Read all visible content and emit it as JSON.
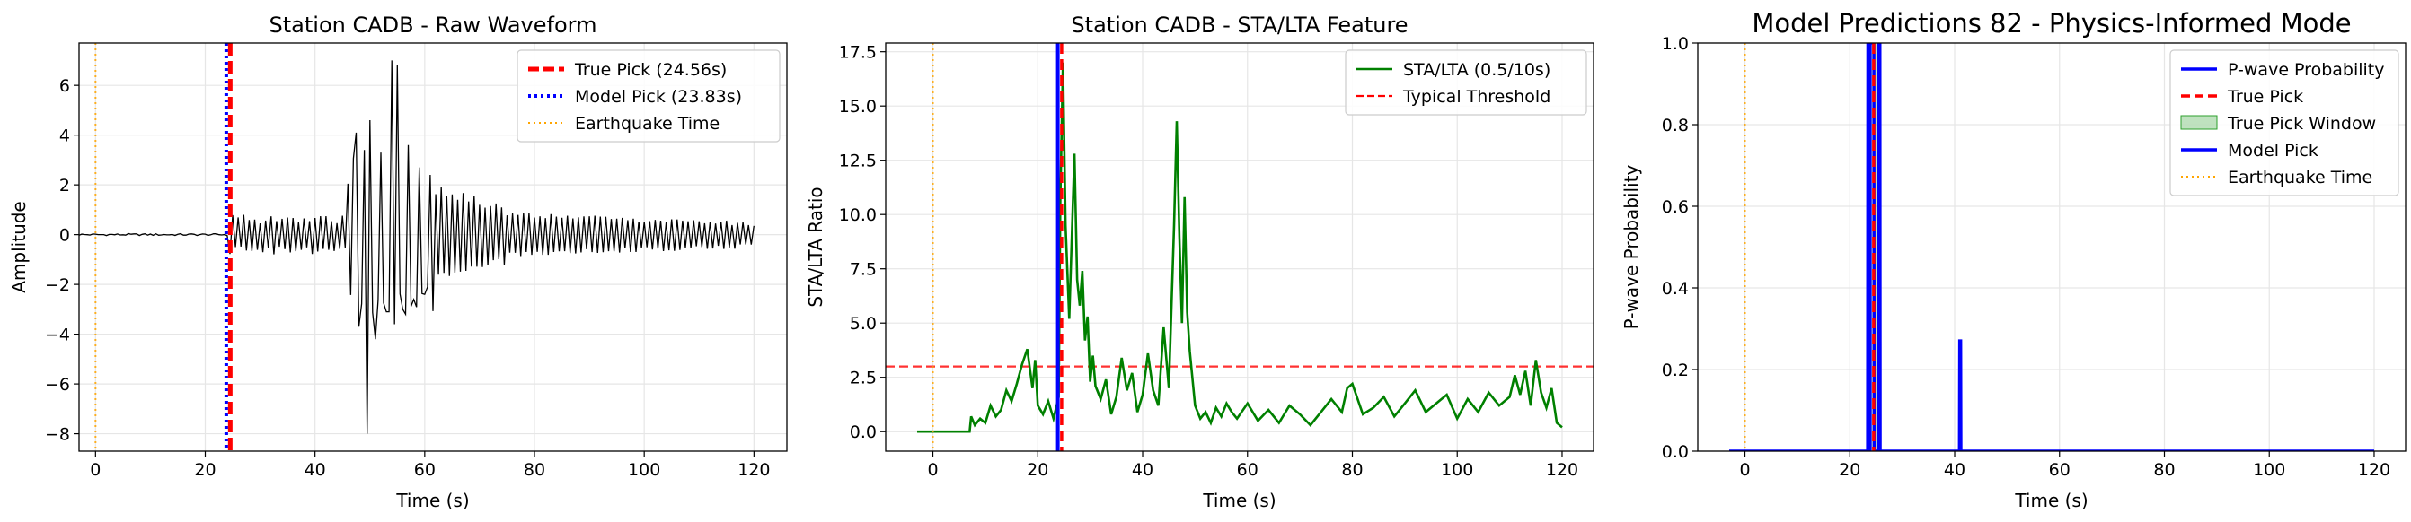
{
  "chart_data": [
    {
      "type": "line",
      "title": "Station CADB - Raw Waveform",
      "xlabel": "Time (s)",
      "ylabel": "Amplitude",
      "xlim": [
        -3,
        126
      ],
      "ylim": [
        -8.7,
        7.7
      ],
      "xticks": [
        0,
        20,
        40,
        60,
        80,
        100,
        120
      ],
      "yticks": [
        -8,
        -6,
        -4,
        -2,
        0,
        2,
        4,
        6
      ],
      "grid": true,
      "legend_position": "top-right",
      "colors": {
        "waveform": "#000000",
        "true_pick": "#ff0000",
        "model_pick": "#0000ff",
        "earthquake": "#ffa500"
      },
      "waveform": {
        "t_start": -3,
        "t_end": 120,
        "dt": 0.5,
        "anchors": [
          [
            47.5,
            4.1
          ],
          [
            48.0,
            -3.7
          ],
          [
            49.0,
            3.4
          ],
          [
            49.5,
            -8.0
          ],
          [
            50.0,
            4.6
          ],
          [
            51.0,
            -4.2
          ],
          [
            52.0,
            3.3
          ],
          [
            53.0,
            -3.1
          ],
          [
            54.0,
            7.0
          ],
          [
            54.5,
            -3.6
          ],
          [
            55.0,
            6.8
          ],
          [
            56.0,
            -3.0
          ],
          [
            57.0,
            3.6
          ],
          [
            58.0,
            -2.6
          ],
          [
            59.0,
            2.7
          ],
          [
            60.0,
            -2.4
          ],
          [
            61.0,
            2.4
          ]
        ]
      },
      "vlines": [
        {
          "x": 0.0,
          "kind": "earthquake"
        },
        {
          "x": 23.83,
          "kind": "model_pick"
        },
        {
          "x": 24.56,
          "kind": "true_pick"
        }
      ],
      "legend": [
        "True Pick (24.56s)",
        "Model Pick (23.83s)",
        "Earthquake Time"
      ]
    },
    {
      "type": "line",
      "title": "Station CADB - STA/LTA Feature",
      "xlabel": "Time (s)",
      "ylabel": "STA/LTA Ratio",
      "xlim": [
        -9,
        126
      ],
      "ylim": [
        -0.9,
        17.9
      ],
      "xticks": [
        0,
        20,
        40,
        60,
        80,
        100,
        120
      ],
      "yticks": [
        0.0,
        2.5,
        5.0,
        7.5,
        10.0,
        12.5,
        15.0,
        17.5
      ],
      "ytick_labels": [
        "0.0",
        "2.5",
        "5.0",
        "7.5",
        "10.0",
        "12.5",
        "15.0",
        "17.5"
      ],
      "grid": true,
      "legend_position": "top-right",
      "threshold": 3.0,
      "colors": {
        "stalta": "#008000",
        "threshold": "#ff0000",
        "true_pick": "#ff0000",
        "model_pick": "#0000ff",
        "earthquake": "#ffa500"
      },
      "series": [
        {
          "name": "STA/LTA (0.5/10s)",
          "x": [
            -3,
            7,
            7.3,
            8,
            9,
            10,
            11,
            12,
            13,
            14,
            15,
            16,
            17,
            18,
            19,
            19.5,
            20,
            21,
            22,
            23,
            24,
            24.3,
            24.8,
            25.3,
            26,
            27,
            27.5,
            28,
            28.5,
            29,
            29.5,
            30,
            30.5,
            31,
            32,
            33,
            34,
            35,
            36,
            37,
            38,
            39,
            40,
            41,
            42,
            43,
            44,
            45,
            46,
            46.5,
            47,
            47.5,
            48,
            48.5,
            49,
            50,
            51,
            52,
            53,
            54,
            55,
            56,
            57,
            58,
            60,
            62,
            64,
            66,
            68,
            70,
            72,
            74,
            76,
            78,
            79,
            80,
            82,
            84,
            86,
            88,
            90,
            92,
            94,
            96,
            98,
            100,
            102,
            104,
            106,
            108,
            110,
            111,
            112,
            113,
            114,
            115,
            116,
            117,
            118,
            119,
            120
          ],
          "y": [
            0,
            0,
            0.7,
            0.3,
            0.6,
            0.4,
            1.2,
            0.7,
            1.0,
            1.9,
            1.4,
            2.2,
            3.1,
            3.8,
            2.0,
            3.3,
            1.2,
            0.8,
            1.4,
            0.6,
            1.6,
            10.7,
            17.0,
            9.5,
            5.2,
            12.8,
            7.0,
            5.8,
            7.4,
            4.2,
            5.3,
            2.3,
            3.5,
            2.1,
            1.5,
            2.4,
            0.8,
            1.6,
            3.4,
            1.9,
            2.7,
            0.9,
            1.7,
            3.6,
            1.9,
            1.2,
            4.8,
            2.0,
            9.5,
            14.3,
            9.0,
            5.0,
            10.8,
            5.5,
            3.7,
            1.2,
            0.6,
            0.9,
            0.4,
            1.1,
            0.7,
            1.3,
            0.9,
            0.6,
            1.3,
            0.5,
            1.0,
            0.4,
            1.2,
            0.8,
            0.3,
            0.9,
            1.5,
            0.9,
            2.0,
            2.2,
            0.8,
            1.1,
            1.6,
            0.7,
            1.3,
            1.9,
            0.9,
            1.3,
            1.7,
            0.6,
            1.5,
            0.9,
            1.8,
            1.2,
            1.6,
            2.6,
            1.7,
            2.8,
            1.2,
            3.3,
            1.8,
            1.1,
            2.0,
            0.4,
            0.2
          ]
        }
      ],
      "vlines": [
        {
          "x": 0.0,
          "kind": "earthquake"
        },
        {
          "x": 23.83,
          "kind": "model_pick"
        },
        {
          "x": 24.56,
          "kind": "true_pick"
        }
      ],
      "legend": [
        "STA/LTA (0.5/10s)",
        "Typical Threshold"
      ]
    },
    {
      "type": "line",
      "title": "Model Predictions 82 - Physics-Informed Mode",
      "xlabel": "Time (s)",
      "ylabel": "P-wave Probability",
      "xlim": [
        -9,
        126
      ],
      "ylim": [
        0.0,
        1.0
      ],
      "xticks": [
        0,
        20,
        40,
        60,
        80,
        100,
        120
      ],
      "yticks": [
        0.0,
        0.2,
        0.4,
        0.6,
        0.8,
        1.0
      ],
      "ytick_labels": [
        "0.0",
        "0.2",
        "0.4",
        "0.6",
        "0.8",
        "1.0"
      ],
      "grid": true,
      "legend_position": "top-right",
      "true_pick_window": [
        23.56,
        25.56
      ],
      "colors": {
        "probability": "#0000ff",
        "true_pick": "#ff0000",
        "window": "#2ca02c",
        "model_pick": "#0000ff",
        "earthquake": "#ffa500"
      },
      "series": [
        {
          "name": "P-wave Probability",
          "x": [
            -3,
            23.4,
            23.45,
            24.6,
            24.65,
            25.45,
            25.5,
            25.75,
            25.8,
            40.9,
            40.95,
            41.15,
            41.2,
            120
          ],
          "y": [
            0,
            0,
            1,
            1,
            0,
            0,
            1,
            1,
            0,
            0,
            0.27,
            0.27,
            0,
            0
          ]
        }
      ],
      "vlines": [
        {
          "x": 0.0,
          "kind": "earthquake"
        },
        {
          "x": 24.56,
          "kind": "true_pick"
        },
        {
          "x": 23.83,
          "kind": "model_pick"
        }
      ],
      "legend": [
        "P-wave Probability",
        "True Pick",
        "True Pick Window",
        "Model Pick",
        "Earthquake Time"
      ]
    }
  ]
}
